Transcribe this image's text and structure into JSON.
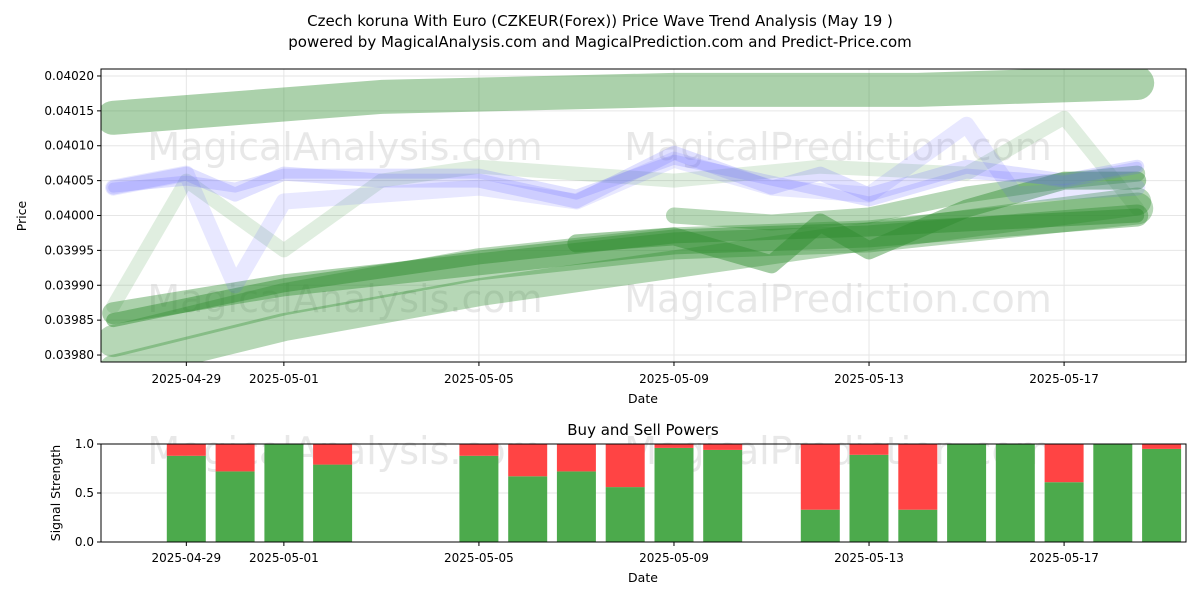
{
  "title_line1": "Czech koruna With Euro (CZKEUR(Forex)) Price Wave Trend Analysis (May 19 )",
  "title_line2": "powered by MagicalAnalysis.com and MagicalPrediction.com and Predict-Price.com",
  "watermarks": [
    "MagicalAnalysis.com",
    "MagicalPrediction.com"
  ],
  "colors": {
    "green": "#2e8b2e",
    "blue": "#6464ff",
    "buy": "#4caa4c",
    "sell": "#ff4444"
  },
  "chart_data": [
    {
      "type": "line",
      "xlabel": "Date",
      "ylabel": "Price",
      "ylim": [
        0.03979,
        0.04021
      ],
      "xlim": [
        "2025-04-27T06",
        "2025-05-19T12"
      ],
      "x_ticks": [
        "2025-04-29",
        "2025-05-01",
        "2025-05-05",
        "2025-05-09",
        "2025-05-13",
        "2025-05-17"
      ],
      "y_ticks": [
        "0.03980",
        "0.03985",
        "0.03990",
        "0.03995",
        "0.04000",
        "0.04005",
        "0.04010",
        "0.04015",
        "0.04020"
      ],
      "grid": true,
      "series": [
        {
          "color": "green",
          "width": 34,
          "opacity": 0.4,
          "x": [
            "2025-04-27T12",
            "2025-05-03",
            "2025-05-09",
            "2025-05-14",
            "2025-05-18T12"
          ],
          "values": [
            0.04014,
            0.04017,
            0.04018,
            0.04018,
            0.04019
          ]
        },
        {
          "color": "green",
          "width": 32,
          "opacity": 0.35,
          "x": [
            "2025-04-27T12",
            "2025-05-01",
            "2025-05-05",
            "2025-05-09",
            "2025-05-13",
            "2025-05-18T12"
          ],
          "values": [
            0.03982,
            0.03988,
            0.03993,
            0.03996,
            0.03997,
            0.04001
          ]
        },
        {
          "color": "green",
          "width": 28,
          "opacity": 0.35,
          "x": [
            "2025-04-27T12",
            "2025-05-01",
            "2025-05-05",
            "2025-05-09",
            "2025-05-13",
            "2025-05-18T12"
          ],
          "values": [
            0.03978,
            0.03984,
            0.03989,
            0.03993,
            0.03997,
            0.04002
          ]
        },
        {
          "color": "green",
          "width": 22,
          "opacity": 0.4,
          "x": [
            "2025-04-27T12",
            "2025-05-01",
            "2025-05-05",
            "2025-05-09",
            "2025-05-13",
            "2025-05-18T12"
          ],
          "values": [
            0.03986,
            0.0399,
            0.03993,
            0.03996,
            0.03997,
            0.04
          ]
        },
        {
          "color": "green",
          "width": 14,
          "opacity": 0.45,
          "x": [
            "2025-04-27T12",
            "2025-05-01",
            "2025-05-05",
            "2025-05-09",
            "2025-05-13",
            "2025-05-18T12"
          ],
          "values": [
            0.03985,
            0.0399,
            0.03994,
            0.03997,
            0.03998,
            0.04
          ]
        },
        {
          "color": "green",
          "width": 18,
          "opacity": 0.45,
          "x": [
            "2025-05-07",
            "2025-05-09",
            "2025-05-11",
            "2025-05-12",
            "2025-05-13",
            "2025-05-15",
            "2025-05-17",
            "2025-05-18T12"
          ],
          "values": [
            0.03996,
            0.03997,
            0.03993,
            0.03999,
            0.03995,
            0.04001,
            0.04005,
            0.04005
          ]
        },
        {
          "color": "green",
          "width": 16,
          "opacity": 0.35,
          "x": [
            "2025-05-09",
            "2025-05-11",
            "2025-05-13",
            "2025-05-15",
            "2025-05-17",
            "2025-05-18T12"
          ],
          "values": [
            0.04,
            0.03999,
            0.04,
            0.04003,
            0.04005,
            0.04006
          ]
        },
        {
          "color": "green",
          "width": 14,
          "opacity": 0.15,
          "x": [
            "2025-04-27T12",
            "2025-04-29",
            "2025-05-01",
            "2025-05-03",
            "2025-05-05",
            "2025-05-09",
            "2025-05-12",
            "2025-05-15",
            "2025-05-17",
            "2025-05-18T12"
          ],
          "values": [
            0.03987,
            0.04005,
            0.03995,
            0.04005,
            0.04007,
            0.04005,
            0.04007,
            0.04006,
            0.04014,
            0.04001
          ]
        },
        {
          "color": "blue",
          "width": 16,
          "opacity": 0.15,
          "x": [
            "2025-04-27T12",
            "2025-04-29",
            "2025-04-30",
            "2025-05-01",
            "2025-05-03",
            "2025-05-05",
            "2025-05-07",
            "2025-05-09",
            "2025-05-11",
            "2025-05-13",
            "2025-05-15",
            "2025-05-16",
            "2025-05-18T12"
          ],
          "values": [
            0.04004,
            0.04006,
            0.0399,
            0.04002,
            0.04003,
            0.04004,
            0.04002,
            0.04008,
            0.04004,
            0.04003,
            0.04013,
            0.04003,
            0.04004
          ]
        },
        {
          "color": "blue",
          "width": 14,
          "opacity": 0.2,
          "x": [
            "2025-04-27T12",
            "2025-04-29",
            "2025-04-30",
            "2025-05-01",
            "2025-05-03",
            "2025-05-05",
            "2025-05-07",
            "2025-05-09",
            "2025-05-11",
            "2025-05-12",
            "2025-05-13",
            "2025-05-15",
            "2025-05-17",
            "2025-05-18T12"
          ],
          "values": [
            0.04004,
            0.04006,
            0.04003,
            0.04006,
            0.04005,
            0.04005,
            0.04002,
            0.04009,
            0.04004,
            0.04006,
            0.04003,
            0.04007,
            0.04005,
            0.04007
          ]
        },
        {
          "color": "blue",
          "width": 10,
          "opacity": 0.2,
          "x": [
            "2025-04-27T12",
            "2025-04-29",
            "2025-04-30",
            "2025-05-01",
            "2025-05-05",
            "2025-05-07",
            "2025-05-09",
            "2025-05-11",
            "2025-05-13",
            "2025-05-15",
            "2025-05-17",
            "2025-05-18T12"
          ],
          "values": [
            0.04004,
            0.04005,
            0.04004,
            0.04006,
            0.04006,
            0.04003,
            0.04008,
            0.04005,
            0.04002,
            0.04006,
            0.04005,
            0.04007
          ]
        }
      ]
    },
    {
      "type": "bar",
      "title": "Buy and Sell Powers",
      "xlabel": "Date",
      "ylabel": "Signal Strength",
      "ylim": [
        0,
        1
      ],
      "y_ticks": [
        "0.0",
        "0.5",
        "1.0"
      ],
      "x_ticks": [
        "2025-04-29",
        "2025-05-01",
        "2025-05-05",
        "2025-05-09",
        "2025-05-13",
        "2025-05-17"
      ],
      "categories": [
        "2025-04-29",
        "2025-04-30",
        "2025-05-01",
        "2025-05-02",
        "2025-05-05",
        "2025-05-06",
        "2025-05-07",
        "2025-05-08",
        "2025-05-09",
        "2025-05-10",
        "2025-05-12",
        "2025-05-13",
        "2025-05-14",
        "2025-05-15",
        "2025-05-16",
        "2025-05-17",
        "2025-05-18",
        "2025-05-19"
      ],
      "series": [
        {
          "name": "Buy",
          "values": [
            0.88,
            0.72,
            1.0,
            0.79,
            0.88,
            0.67,
            0.72,
            0.56,
            0.96,
            0.94,
            0.33,
            0.89,
            0.33,
            1.0,
            1.0,
            0.61,
            1.0,
            0.95
          ]
        },
        {
          "name": "Sell",
          "values": [
            0.12,
            0.28,
            0.0,
            0.21,
            0.12,
            0.33,
            0.28,
            0.44,
            0.04,
            0.06,
            0.67,
            0.11,
            0.67,
            0.0,
            0.0,
            0.39,
            0.0,
            0.05
          ]
        }
      ]
    }
  ]
}
